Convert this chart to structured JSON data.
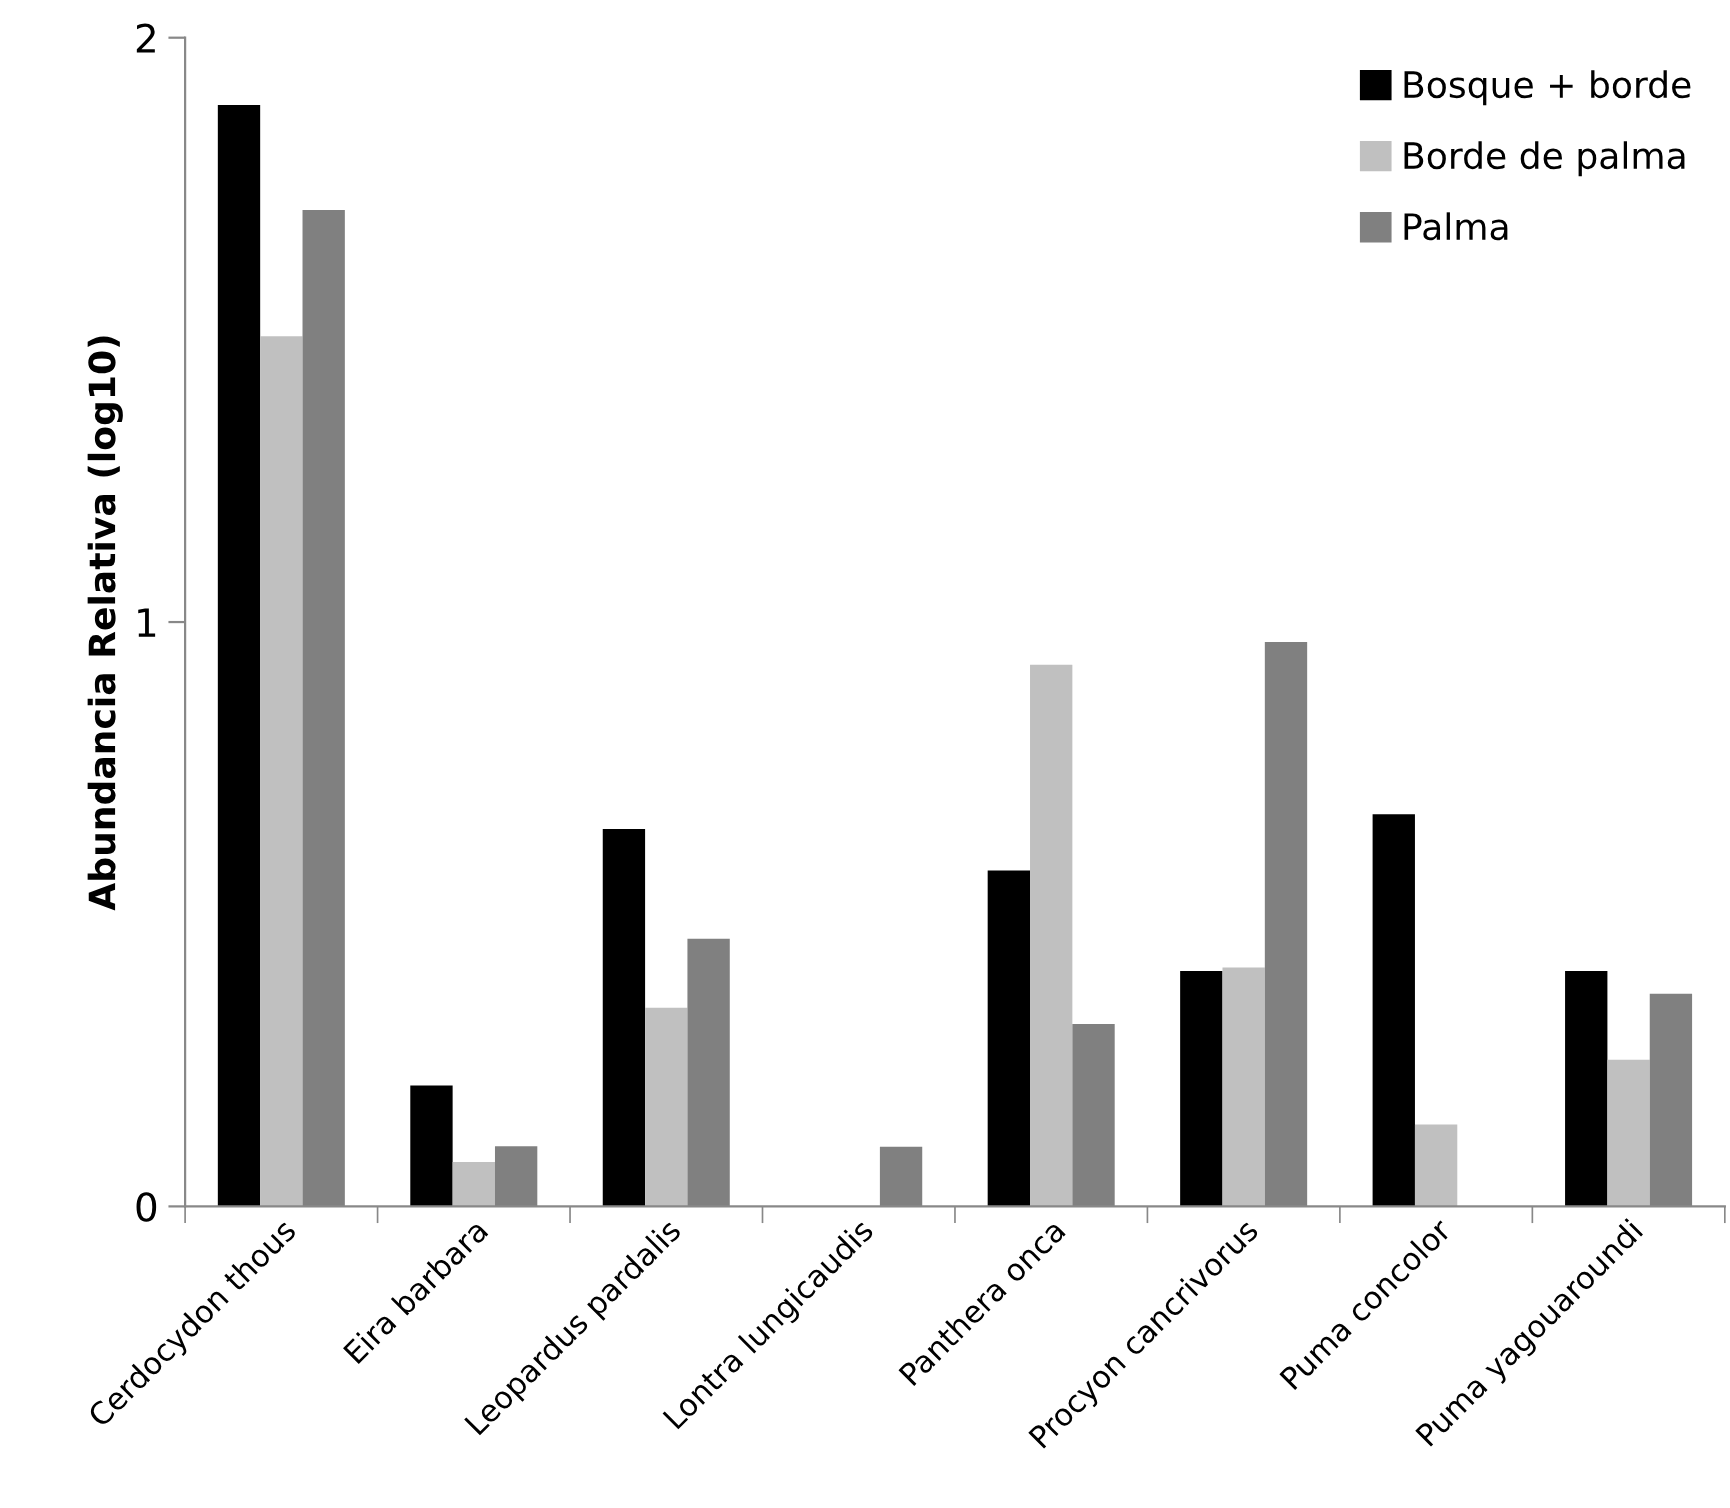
{
  "chart_data": {
    "type": "bar",
    "ylabel": "Abundancia Relativa (log10)",
    "categories": [
      "Cerdocydon thous",
      "Eira barbara",
      "Leopardus pardalis",
      "Lontra lungicaudis",
      "Panthera onca",
      "Procyon cancrivorus",
      "Puma concolor",
      "Puma yagouaroundi"
    ],
    "series": [
      {
        "name": "Bosque + borde",
        "color": "#000000",
        "values": [
          1.885,
          0.207,
          0.646,
          0,
          0.575,
          0.403,
          0.671,
          0.403
        ]
      },
      {
        "name": "Borde de palma",
        "color": "#c0c0c0",
        "values": [
          1.489,
          0.076,
          0.34,
          0,
          0.927,
          0.409,
          0.14,
          0.251
        ]
      },
      {
        "name": "Palma",
        "color": "#808080",
        "values": [
          1.705,
          0.103,
          0.458,
          0.102,
          0.312,
          0.966,
          0,
          0.364
        ]
      }
    ],
    "ylim": [
      0,
      2
    ],
    "yticks": [
      0,
      1,
      2
    ],
    "grid": false,
    "legend": "top right"
  }
}
